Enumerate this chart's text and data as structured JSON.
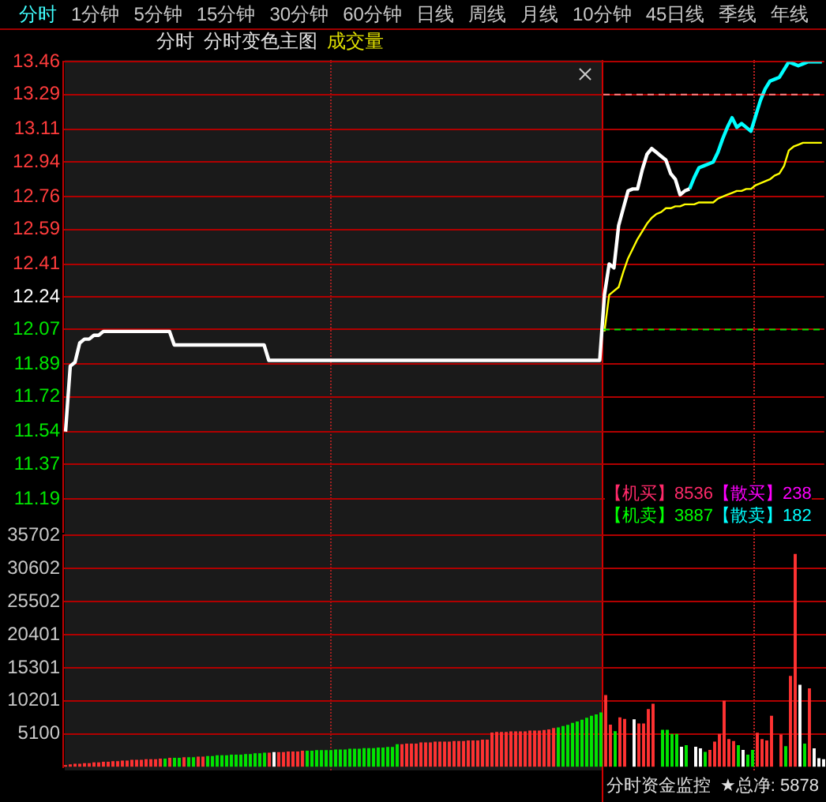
{
  "chart_data": [
    {
      "type": "line",
      "annotations": [
        "分时",
        "1分钟",
        "5分钟",
        "15分钟",
        "30分钟",
        "60分钟",
        "日线",
        "周线",
        "月线",
        "10分钟",
        "45日线",
        "季线",
        "年线",
        "分时",
        "分时变色主图",
        "成交量",
        "【机买】",
        "8536",
        "【散买】",
        "238",
        "【机卖】",
        "3887",
        "【散卖】",
        "182",
        "分时资金监控",
        "★总净: 5878"
      ],
      "categories": [
        null,
        null,
        null,
        null,
        null,
        null,
        null,
        null,
        null,
        null,
        null,
        null,
        null,
        null,
        null,
        null,
        null,
        null,
        null,
        null,
        null,
        null,
        null,
        null,
        null,
        null,
        null,
        null,
        null,
        null,
        null,
        null,
        null,
        null,
        null,
        null,
        null,
        null,
        null,
        null,
        null,
        null,
        null,
        null,
        null,
        null,
        null,
        null,
        null,
        null,
        null,
        null,
        null,
        null,
        null,
        null,
        null,
        null,
        null,
        null,
        null,
        null,
        null,
        null,
        null,
        null,
        null,
        null,
        null,
        null,
        null,
        null,
        null,
        null,
        null,
        null,
        null,
        null,
        null,
        null,
        null,
        null,
        null,
        null,
        null,
        null,
        null,
        null,
        null,
        null,
        null,
        null,
        null,
        null,
        null,
        null,
        null,
        null,
        null,
        null,
        null,
        null,
        null,
        null,
        null,
        null,
        null,
        null,
        null,
        null,
        null,
        null,
        null,
        null,
        null,
        null,
        null,
        null,
        null,
        null,
        null,
        null,
        null,
        null,
        null,
        null,
        null,
        null,
        null,
        null,
        null,
        null,
        null,
        null,
        null,
        null,
        null,
        null,
        null,
        null,
        null,
        null,
        null,
        null,
        null,
        null,
        null,
        null,
        null,
        null,
        null,
        null,
        null,
        null,
        null,
        null,
        null,
        null,
        null,
        null,
        null
      ],
      "series": [
        {
          "color": "#ffffff",
          "values": [
            11.54,
            11.88,
            11.9,
            12.0,
            12.02,
            12.02,
            12.04,
            12.04,
            12.06,
            12.06,
            12.06,
            12.06,
            12.06,
            12.06,
            12.06,
            12.06,
            12.06,
            12.06,
            12.06,
            12.06,
            12.06,
            12.06,
            12.06,
            11.99,
            11.99,
            11.99,
            11.99,
            11.99,
            11.99,
            11.99,
            11.99,
            11.99,
            11.99,
            11.99,
            11.99,
            11.99,
            11.99,
            11.99,
            11.99,
            11.99,
            11.99,
            11.99,
            11.99,
            11.91,
            11.91,
            11.91,
            11.91,
            11.91,
            11.91,
            11.91,
            11.91,
            11.91,
            11.91,
            11.91,
            11.91,
            11.91,
            11.91,
            11.91,
            11.91,
            11.91,
            11.91,
            11.91,
            11.91,
            11.91,
            11.91,
            11.91,
            11.91,
            11.91,
            11.91,
            11.91,
            11.91,
            11.91,
            11.91,
            11.91,
            11.91,
            11.91,
            11.91,
            11.91,
            11.91,
            11.91,
            11.91,
            11.91,
            11.91,
            11.91,
            11.91,
            11.91,
            11.91,
            11.91,
            11.91,
            11.91,
            11.91,
            11.91,
            11.91,
            11.91,
            11.91,
            11.91,
            11.91,
            11.91,
            11.91,
            11.91,
            11.91,
            11.91,
            11.91,
            11.91,
            11.91,
            11.91,
            11.91,
            11.91,
            11.91,
            11.91,
            11.91,
            11.91,
            11.91,
            11.91,
            12.25,
            12.41,
            12.39,
            12.61,
            12.7,
            12.79,
            12.8,
            12.8,
            12.9,
            12.98,
            13.01,
            12.99,
            12.97,
            12.95,
            12.88,
            12.85,
            12.77,
            12.79,
            12.8,
            null,
            null,
            null,
            null,
            null,
            null,
            null,
            null,
            null,
            null,
            null,
            null,
            null,
            null,
            null,
            null,
            null,
            null,
            null,
            null,
            null,
            null,
            null,
            null,
            null,
            null,
            null,
            null
          ]
        },
        {
          "color": "#00ffff",
          "values": [
            null,
            null,
            null,
            null,
            null,
            null,
            null,
            null,
            null,
            null,
            null,
            null,
            null,
            null,
            null,
            null,
            null,
            null,
            null,
            null,
            null,
            null,
            null,
            null,
            null,
            null,
            null,
            null,
            null,
            null,
            null,
            null,
            null,
            null,
            null,
            null,
            null,
            null,
            null,
            null,
            null,
            null,
            null,
            null,
            null,
            null,
            null,
            null,
            null,
            null,
            null,
            null,
            null,
            null,
            null,
            null,
            null,
            null,
            null,
            null,
            null,
            null,
            null,
            null,
            null,
            null,
            null,
            null,
            null,
            null,
            null,
            null,
            null,
            null,
            null,
            null,
            null,
            null,
            null,
            null,
            null,
            null,
            null,
            null,
            null,
            null,
            null,
            null,
            null,
            null,
            null,
            null,
            null,
            null,
            null,
            null,
            null,
            null,
            null,
            null,
            null,
            null,
            null,
            null,
            null,
            null,
            null,
            null,
            null,
            null,
            null,
            null,
            null,
            null,
            null,
            null,
            null,
            null,
            null,
            null,
            null,
            null,
            null,
            null,
            null,
            null,
            null,
            null,
            null,
            null,
            null,
            null,
            12.8,
            12.86,
            12.91,
            12.92,
            12.93,
            12.94,
            12.99,
            13.06,
            13.12,
            13.17,
            13.12,
            13.14,
            13.12,
            13.1,
            13.18,
            13.26,
            13.32,
            13.36,
            13.37,
            13.38,
            13.42,
            13.46,
            13.45,
            13.44,
            13.45,
            13.46,
            13.46,
            13.46,
            13.46
          ]
        },
        {
          "color": "#ffff00",
          "values": [
            null,
            null,
            null,
            null,
            null,
            null,
            null,
            null,
            null,
            null,
            null,
            null,
            null,
            null,
            null,
            null,
            null,
            null,
            null,
            null,
            null,
            null,
            null,
            null,
            null,
            null,
            null,
            null,
            null,
            null,
            null,
            null,
            null,
            null,
            null,
            null,
            null,
            null,
            null,
            null,
            null,
            null,
            null,
            null,
            null,
            null,
            null,
            null,
            null,
            null,
            null,
            null,
            null,
            null,
            null,
            null,
            null,
            null,
            null,
            null,
            null,
            null,
            null,
            null,
            null,
            null,
            null,
            null,
            null,
            null,
            null,
            null,
            null,
            null,
            null,
            null,
            null,
            null,
            null,
            null,
            null,
            null,
            null,
            null,
            null,
            null,
            null,
            null,
            null,
            null,
            null,
            null,
            null,
            null,
            null,
            null,
            null,
            null,
            null,
            null,
            null,
            null,
            null,
            null,
            null,
            null,
            null,
            null,
            null,
            null,
            null,
            null,
            null,
            null,
            12.06,
            12.25,
            12.27,
            12.29,
            12.37,
            12.44,
            12.49,
            12.54,
            12.58,
            12.62,
            12.65,
            12.67,
            12.68,
            12.7,
            12.7,
            12.71,
            12.71,
            12.72,
            12.72,
            12.72,
            12.73,
            12.73,
            12.73,
            12.73,
            12.75,
            12.76,
            12.77,
            12.78,
            12.79,
            12.79,
            12.8,
            12.8,
            12.82,
            12.83,
            12.84,
            12.85,
            12.87,
            12.88,
            12.92,
            13.0,
            13.02,
            13.03,
            13.04,
            13.04,
            13.04,
            13.04,
            13.04
          ]
        }
      ],
      "ylim": [
        11.02,
        13.46
      ],
      "yticks": [
        11.19,
        11.37,
        11.54,
        11.72,
        11.89,
        12.07,
        12.24,
        12.41,
        12.59,
        12.76,
        12.94,
        13.11,
        13.29,
        13.46
      ],
      "ref_lines": [
        {
          "axis": "y",
          "value": 13.29,
          "color": "#ff8080",
          "line_style": "dashed"
        },
        {
          "axis": "y",
          "value": 12.07,
          "color": "#00e600",
          "line_style": "dashed"
        }
      ],
      "grid": "y",
      "tick_labels": "y",
      "legend": false
    },
    {
      "type": "bar",
      "categories": [
        null,
        null,
        null,
        null,
        null,
        null,
        null,
        null,
        null,
        null,
        null,
        null,
        null,
        null,
        null,
        null,
        null,
        null,
        null,
        null,
        null,
        null,
        null,
        null,
        null,
        null,
        null,
        null,
        null,
        null,
        null,
        null,
        null,
        null,
        null,
        null,
        null,
        null,
        null,
        null,
        null,
        null,
        null,
        null,
        null,
        null,
        null,
        null,
        null,
        null,
        null,
        null,
        null,
        null,
        null,
        null,
        null,
        null,
        null,
        null,
        null,
        null,
        null,
        null,
        null,
        null,
        null,
        null,
        null,
        null,
        null,
        null,
        null,
        null,
        null,
        null,
        null,
        null,
        null,
        null,
        null,
        null,
        null,
        null,
        null,
        null,
        null,
        null,
        null,
        null,
        null,
        null,
        null,
        null,
        null,
        null,
        null,
        null,
        null,
        null,
        null,
        null,
        null,
        null,
        null,
        null,
        null,
        null,
        null,
        null,
        null,
        null,
        null,
        null,
        null,
        null,
        null,
        null,
        null,
        null,
        null,
        null,
        null,
        null,
        null,
        null,
        null,
        null,
        null,
        null,
        null,
        null,
        null,
        null,
        null,
        null,
        null,
        null,
        null,
        null,
        null,
        null,
        null,
        null,
        null,
        null,
        null,
        null,
        null,
        null,
        null,
        null,
        null,
        null,
        null,
        null,
        null,
        null,
        null,
        null,
        null
      ],
      "values": [
        300,
        400,
        500,
        500,
        600,
        600,
        700,
        700,
        800,
        800,
        900,
        900,
        1000,
        1000,
        1100,
        1100,
        1100,
        1200,
        1200,
        1200,
        1300,
        1300,
        1400,
        1400,
        1400,
        1500,
        1500,
        1500,
        1600,
        1600,
        1700,
        1700,
        1800,
        1800,
        1800,
        1900,
        1900,
        1900,
        2000,
        2000,
        2100,
        2100,
        2200,
        2200,
        2300,
        2300,
        2300,
        2400,
        2400,
        2400,
        2500,
        2500,
        2500,
        2600,
        2600,
        2600,
        2600,
        2700,
        2700,
        2700,
        2800,
        2800,
        2800,
        2900,
        2900,
        2900,
        3000,
        3000,
        3100,
        3100,
        3500,
        3500,
        3600,
        3600,
        3600,
        3800,
        3800,
        3800,
        3900,
        3900,
        3900,
        3900,
        4000,
        4000,
        4000,
        4100,
        4100,
        4100,
        4200,
        4200,
        5300,
        5400,
        5400,
        5400,
        5500,
        5500,
        5500,
        5500,
        5600,
        5600,
        5600,
        5700,
        5800,
        6000,
        6100,
        6300,
        6500,
        6800,
        7000,
        7300,
        7600,
        7900,
        8100,
        8400,
        11090,
        6540,
        5510,
        7660,
        7400,
        null,
        7350,
        6700,
        6700,
        8930,
        9740,
        null,
        5750,
        5750,
        5100,
        5100,
        3110,
        3350,
        null,
        3110,
        2870,
        2320,
        2630,
        3900,
        5100,
        10220,
        4300,
        4000,
        3350,
        2630,
        1900,
        2630,
        5270,
        4300,
        4100,
        7900,
        null,
        5000,
        3200,
        14050,
        32870,
        12690,
        3600,
        12140,
        2870,
        1350,
        1200
      ],
      "colors": [
        "#ff3232",
        "#ff3232",
        "#ff3232",
        "#ff3232",
        "#ff3232",
        "#ff3232",
        "#ff3232",
        "#ff3232",
        "#ff3232",
        "#ff3232",
        "#ff3232",
        "#ff3232",
        "#ff3232",
        "#ff3232",
        "#ff3232",
        "#ff3232",
        "#ff3232",
        "#ff3232",
        "#ff3232",
        "#ff3232",
        "#ff3232",
        "#00e600",
        "#ff3232",
        "#00e600",
        "#00e600",
        "#ff3232",
        "#00e600",
        "#00e600",
        "#ff3232",
        "#ff3232",
        "#00e600",
        "#00e600",
        "#00e600",
        "#00e600",
        "#00e600",
        "#00e600",
        "#00e600",
        "#00e600",
        "#00e600",
        "#00e600",
        "#00e600",
        "#00e600",
        "#00e600",
        "#ff3232",
        "#ffffff",
        "#ff3232",
        "#ff3232",
        "#ff3232",
        "#ff3232",
        "#ff3232",
        "#ff3232",
        "#00e600",
        "#00e600",
        "#00e600",
        "#00e600",
        "#00e600",
        "#00e600",
        "#00e600",
        "#00e600",
        "#00e600",
        "#00e600",
        "#00e600",
        "#00e600",
        "#00e600",
        "#00e600",
        "#00e600",
        "#00e600",
        "#00e600",
        "#00e600",
        "#00e600",
        "#00e600",
        "#ff3232",
        "#ff3232",
        "#ff3232",
        "#ff3232",
        "#ff3232",
        "#ff3232",
        "#ff3232",
        "#ff3232",
        "#ff3232",
        "#ff3232",
        "#ff3232",
        "#ff3232",
        "#ff3232",
        "#ff3232",
        "#ff3232",
        "#ff3232",
        "#ff3232",
        "#ff3232",
        "#ff3232",
        "#ff3232",
        "#ff3232",
        "#ff3232",
        "#ff3232",
        "#ff3232",
        "#ff3232",
        "#ff3232",
        "#ff3232",
        "#ff3232",
        "#ff3232",
        "#ff3232",
        "#ff3232",
        "#ff3232",
        "#ff3232",
        "#00e600",
        "#00e600",
        "#00e600",
        "#00e600",
        "#00e600",
        "#00e600",
        "#00e600",
        "#00e600",
        "#00e600",
        "#00e600",
        "#ff3232",
        "#ff3232",
        "#00e600",
        "#ff3232",
        "#ff3232",
        "#ff3232",
        "#ffffff",
        "#ff3232",
        "#ff3232",
        "#ff3232",
        "#ff3232",
        "#ff3232",
        "#00e600",
        "#00e600",
        "#00e600",
        "#00e600",
        "#ffffff",
        "#00e600",
        "#ff3232",
        "#ffffff",
        "#ffffff",
        "#00e600",
        "#ff3232",
        "#ff3232",
        "#ff3232",
        "#ff3232",
        "#ff3232",
        "#ff3232",
        "#00e600",
        "#ffffff",
        "#00e600",
        "#00e600",
        "#ff3232",
        "#ff3232",
        "#ff3232",
        "#ff3232",
        "#ff3232",
        "#ff3232",
        "#00e600",
        "#ff3232",
        "#ff3232",
        "#ffffff",
        "#00e600",
        "#ff3232",
        "#ffffff",
        "#ffffff",
        "#ffffff"
      ],
      "ylim": [
        0,
        35702
      ],
      "yticks": [
        5100,
        10201,
        15301,
        20401,
        25502,
        30602,
        35702
      ],
      "grid": "y",
      "tick_labels": "y",
      "legend": false
    }
  ]
}
